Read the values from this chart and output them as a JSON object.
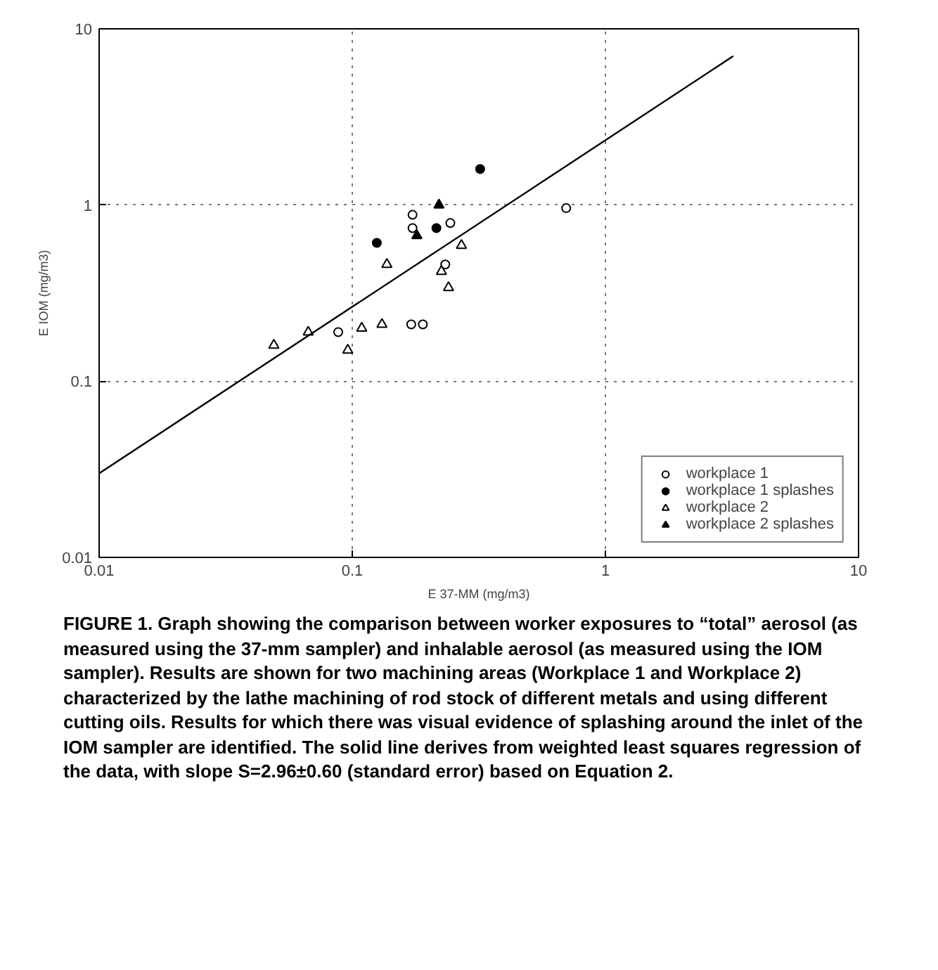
{
  "chart_data": {
    "type": "scatter",
    "xlabel": "E 37-MM (mg/m3)",
    "ylabel": "E IOM (mg/m3)",
    "log": "xy",
    "xlim": [
      0.01,
      10
    ],
    "ylim": [
      0.01,
      10
    ],
    "xticks": [
      0.01,
      0.1,
      1,
      10
    ],
    "yticks": [
      0.01,
      0.1,
      1,
      10
    ],
    "grid": true,
    "legend": "bottom right",
    "series": [
      {
        "name": "workplace 1",
        "color": "#000000",
        "marker": "circle",
        "x": [
          0.7,
          0.173,
          0.173,
          0.244,
          0.233,
          0.171,
          0.19,
          0.088
        ],
        "values": [
          0.96,
          0.88,
          0.74,
          0.79,
          0.46,
          0.21,
          0.21,
          0.19
        ]
      },
      {
        "name": "workplace 1 splashes",
        "color": "#000000",
        "marker": "circle",
        "x": [
          0.32,
          0.215,
          0.125
        ],
        "values": [
          1.6,
          0.74,
          0.61
        ]
      },
      {
        "name": "workplace 2",
        "color": "#000000",
        "marker": "triangle",
        "x": [
          0.27,
          0.137,
          0.225,
          0.24,
          0.131,
          0.109,
          0.096,
          0.067,
          0.049
        ],
        "values": [
          0.59,
          0.46,
          0.42,
          0.34,
          0.21,
          0.2,
          0.15,
          0.19,
          0.16
        ]
      },
      {
        "name": "workplace 2 splashes",
        "color": "#000000",
        "marker": "triangle",
        "x": [
          0.22,
          0.18
        ],
        "values": [
          1.0,
          0.67
        ]
      },
      {
        "type": "line",
        "color": "#000000",
        "line_style": "solid",
        "x": [
          0.01,
          3.2
        ],
        "values": [
          0.03,
          7
        ]
      }
    ],
    "annotations": [
      "FIGURE 1. Graph showing the comparison between worker exposures to “total” aerosol (as measured using the 37-mm sampler) and inhalable aerosol (as measured using the IOM sampler). Results are shown for two machining areas (Workplace 1 and Workplace 2) characterized by the lathe machining of rod stock of different metals and using different cutting oils. Results for which there was visual evidence of splashing around the inlet of the IOM sampler are identified. The solid line derives from weighted least squares regression of the data, with slope S=2.96±0.60 (standard error) based on Equation 2."
    ]
  }
}
